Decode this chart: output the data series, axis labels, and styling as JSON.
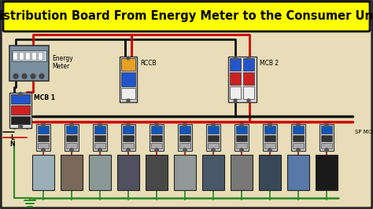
{
  "title": "Distribution Board From Energy Meter to the Consumer Unit",
  "title_fontsize": 10.5,
  "title_color": "#000000",
  "title_bg": "#FFFF00",
  "bg_color": "#E8DDB8",
  "outer_border_color": "#2A2A2A",
  "wire_red": "#CC0000",
  "wire_black": "#111111",
  "wire_green": "#228B22",
  "label_energy_meter": "Energy\nMeter",
  "label_rccb": "RCCB",
  "label_mcb1": "MCB 1",
  "label_mcb2": "MCB 2",
  "label_sp_mcb": "SP MCB",
  "label_L": "L",
  "label_N": "N",
  "num_sp_mcb": 11,
  "fig_w": 4.74,
  "fig_h": 2.66,
  "dpi": 100
}
